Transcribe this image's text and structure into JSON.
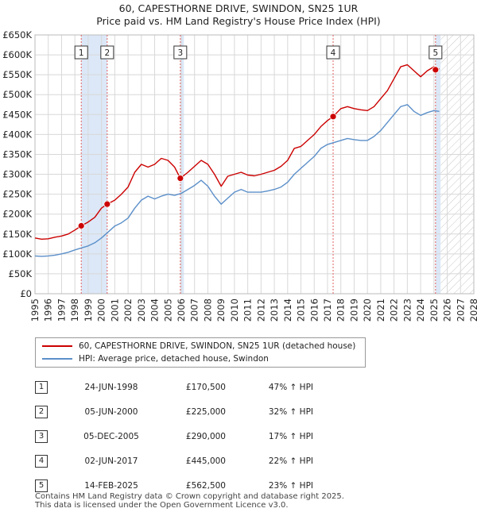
{
  "header": {
    "title_line1": "60, CAPESTHORNE DRIVE, SWINDON, SN25 1UR",
    "title_line2": "Price paid vs. HM Land Registry's House Price Index (HPI)"
  },
  "legend": {
    "property_label": "60, CAPESTHORNE DRIVE, SWINDON, SN25 1UR (detached house)",
    "hpi_label": "HPI: Average price, detached house, Swindon"
  },
  "colors": {
    "property": "#cc0000",
    "hpi": "#5b8fc9",
    "shade": "#dce8f7",
    "grid": "#d8d8d8",
    "marker_line": "#e06060"
  },
  "sales": [
    {
      "num": "1",
      "date": "24-JUN-1998",
      "price": "£170,500",
      "hpi": "47% ↑ HPI"
    },
    {
      "num": "2",
      "date": "05-JUN-2000",
      "price": "£225,000",
      "hpi": "32% ↑ HPI"
    },
    {
      "num": "3",
      "date": "05-DEC-2005",
      "price": "£290,000",
      "hpi": "17% ↑ HPI"
    },
    {
      "num": "4",
      "date": "02-JUN-2017",
      "price": "£445,000",
      "hpi": "22% ↑ HPI"
    },
    {
      "num": "5",
      "date": "14-FEB-2025",
      "price": "£562,500",
      "hpi": "23% ↑ HPI"
    }
  ],
  "footer": {
    "line1": "Contains HM Land Registry data © Crown copyright and database right 2025.",
    "line2": "This data is licensed under the Open Government Licence v3.0."
  },
  "chart_data": {
    "type": "line",
    "title": "60, CAPESTHORNE DRIVE, SWINDON, SN25 1UR — Price paid vs. HM Land Registry's House Price Index (HPI)",
    "xlabel": "",
    "ylabel": "",
    "xlim": [
      1995,
      2028
    ],
    "ylim": [
      0,
      650000
    ],
    "x_ticks": [
      1995,
      1996,
      1997,
      1998,
      1999,
      2000,
      2001,
      2002,
      2003,
      2004,
      2005,
      2006,
      2007,
      2008,
      2009,
      2010,
      2011,
      2012,
      2013,
      2014,
      2015,
      2016,
      2017,
      2018,
      2019,
      2020,
      2021,
      2022,
      2023,
      2024,
      2025,
      2026,
      2027,
      2028
    ],
    "y_ticks": [
      0,
      50000,
      100000,
      150000,
      200000,
      250000,
      300000,
      350000,
      400000,
      450000,
      500000,
      550000,
      600000,
      650000
    ],
    "y_tick_labels": [
      "£0",
      "£50K",
      "£100K",
      "£150K",
      "£200K",
      "£250K",
      "£300K",
      "£350K",
      "£400K",
      "£450K",
      "£500K",
      "£550K",
      "£600K",
      "£650K"
    ],
    "shaded_ranges": [
      [
        1998.48,
        2000.43
      ],
      [
        2005.93,
        2006.2
      ],
      [
        2025.12,
        2025.5
      ]
    ],
    "forecast_start": 2025.5,
    "sale_points": [
      {
        "label": "1",
        "x": 1998.48,
        "y": 170500
      },
      {
        "label": "2",
        "x": 2000.43,
        "y": 225000
      },
      {
        "label": "3",
        "x": 2005.93,
        "y": 290000
      },
      {
        "label": "4",
        "x": 2017.42,
        "y": 445000
      },
      {
        "label": "5",
        "x": 2025.12,
        "y": 562500
      }
    ],
    "series": [
      {
        "name": "60, CAPESTHORNE DRIVE, SWINDON, SN25 1UR (detached house)",
        "x": [
          1995,
          1995.5,
          1996,
          1996.5,
          1997,
          1997.5,
          1998,
          1998.48,
          1999,
          1999.5,
          2000,
          2000.43,
          2001,
          2001.5,
          2002,
          2002.5,
          2003,
          2003.5,
          2004,
          2004.5,
          2005,
          2005.5,
          2005.93,
          2006.5,
          2007,
          2007.5,
          2008,
          2008.5,
          2009,
          2009.5,
          2010,
          2010.5,
          2011,
          2011.5,
          2012,
          2012.5,
          2013,
          2013.5,
          2014,
          2014.5,
          2015,
          2015.5,
          2016,
          2016.5,
          2017,
          2017.42,
          2018,
          2018.5,
          2019,
          2019.5,
          2020,
          2020.5,
          2021,
          2021.5,
          2022,
          2022.5,
          2023,
          2023.5,
          2024,
          2024.5,
          2025,
          2025.12,
          2025.4
        ],
        "values": [
          140000,
          137000,
          138000,
          142000,
          145000,
          150000,
          160000,
          170500,
          180000,
          192000,
          215000,
          225000,
          235000,
          250000,
          268000,
          305000,
          325000,
          318000,
          325000,
          340000,
          335000,
          318000,
          290000,
          305000,
          320000,
          335000,
          325000,
          300000,
          270000,
          295000,
          300000,
          305000,
          298000,
          296000,
          300000,
          305000,
          310000,
          320000,
          335000,
          365000,
          370000,
          385000,
          400000,
          420000,
          435000,
          445000,
          465000,
          470000,
          465000,
          462000,
          460000,
          470000,
          490000,
          510000,
          540000,
          570000,
          575000,
          560000,
          545000,
          560000,
          570000,
          562500,
          565000
        ]
      },
      {
        "name": "HPI: Average price, detached house, Swindon",
        "x": [
          1995,
          1995.5,
          1996,
          1996.5,
          1997,
          1997.5,
          1998,
          1998.5,
          1999,
          1999.5,
          2000,
          2000.5,
          2001,
          2001.5,
          2002,
          2002.5,
          2003,
          2003.5,
          2004,
          2004.5,
          2005,
          2005.5,
          2006,
          2006.5,
          2007,
          2007.5,
          2008,
          2008.5,
          2009,
          2009.5,
          2010,
          2010.5,
          2011,
          2011.5,
          2012,
          2012.5,
          2013,
          2013.5,
          2014,
          2014.5,
          2015,
          2015.5,
          2016,
          2016.5,
          2017,
          2017.5,
          2018,
          2018.5,
          2019,
          2019.5,
          2020,
          2020.5,
          2021,
          2021.5,
          2022,
          2022.5,
          2023,
          2023.5,
          2024,
          2024.5,
          2025,
          2025.4
        ],
        "values": [
          95000,
          94000,
          95000,
          97000,
          100000,
          104000,
          110000,
          115000,
          120000,
          128000,
          140000,
          155000,
          170000,
          178000,
          190000,
          215000,
          235000,
          245000,
          238000,
          245000,
          250000,
          247000,
          252000,
          262000,
          272000,
          285000,
          270000,
          245000,
          225000,
          240000,
          255000,
          262000,
          255000,
          255000,
          255000,
          258000,
          262000,
          268000,
          280000,
          300000,
          315000,
          330000,
          345000,
          365000,
          375000,
          380000,
          385000,
          390000,
          387000,
          385000,
          385000,
          395000,
          410000,
          430000,
          450000,
          470000,
          475000,
          458000,
          448000,
          455000,
          460000,
          458000
        ]
      }
    ]
  }
}
